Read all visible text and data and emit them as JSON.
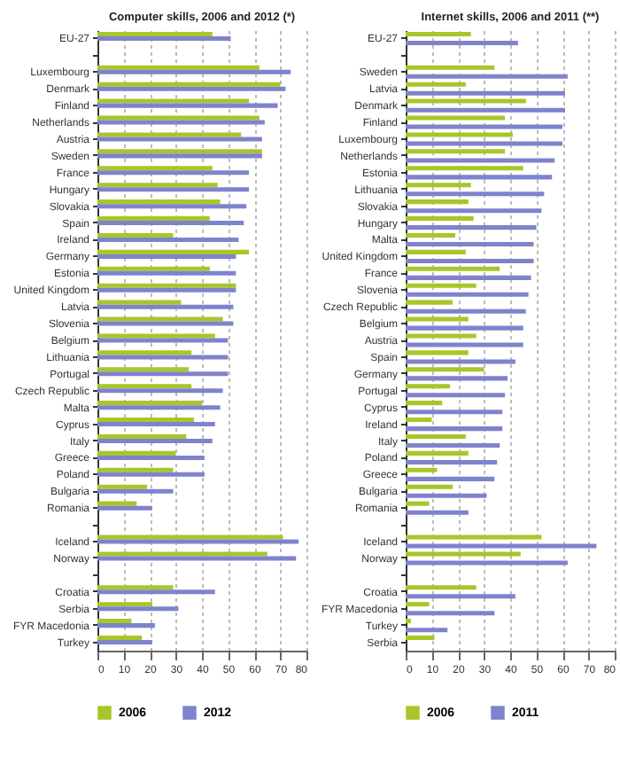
{
  "chart_data": [
    {
      "type": "bar",
      "orientation": "horizontal",
      "title": "Computer skills, 2006 and 2012 (*)",
      "categories": [
        "EU-27",
        null,
        "Luxembourg",
        "Denmark",
        "Finland",
        "Netherlands",
        "Austria",
        "Sweden",
        "France",
        "Hungary",
        "Slovakia",
        "Spain",
        "Ireland",
        "Germany",
        "Estonia",
        "United Kingdom",
        "Latvia",
        "Slovenia",
        "Belgium",
        "Lithuania",
        "Portugal",
        "Czech Republic",
        "Malta",
        "Cyprus",
        "Italy",
        "Greece",
        "Poland",
        "Bulgaria",
        "Romania",
        null,
        "Iceland",
        "Norway",
        null,
        "Croatia",
        "Serbia",
        "FYR Macedonia",
        "Turkey"
      ],
      "series": [
        {
          "name": "2006",
          "color": "#a8c62a",
          "values": [
            44,
            null,
            62,
            70,
            58,
            62,
            55,
            63,
            44,
            46,
            47,
            43,
            29,
            58,
            43,
            53,
            32,
            48,
            45,
            36,
            35,
            36,
            40,
            37,
            34,
            30,
            29,
            19,
            15,
            null,
            71,
            65,
            null,
            29,
            21,
            13,
            17
          ]
        },
        {
          "name": "2012",
          "color": "#7f83cc",
          "values": [
            51,
            null,
            74,
            72,
            69,
            64,
            63,
            63,
            58,
            58,
            57,
            56,
            54,
            53,
            53,
            53,
            52,
            52,
            50,
            50,
            50,
            48,
            47,
            45,
            44,
            41,
            41,
            29,
            21,
            null,
            77,
            76,
            null,
            45,
            31,
            22,
            21
          ]
        }
      ],
      "xlim": [
        0,
        80
      ],
      "xticks": [
        0,
        10,
        20,
        30,
        40,
        50,
        60,
        70,
        80
      ],
      "grid": "x",
      "legend": "bottom"
    },
    {
      "type": "bar",
      "orientation": "horizontal",
      "title": "Internet skills, 2006 and 2011 (**)",
      "categories": [
        "EU-27",
        null,
        "Sweden",
        "Latvia",
        "Denmark",
        "Finland",
        "Luxembourg",
        "Netherlands",
        "Estonia",
        "Lithuania",
        "Slovakia",
        "Hungary",
        "Malta",
        "United Kingdom",
        "France",
        "Slovenia",
        "Czech Republic",
        "Belgium",
        "Austria",
        "Spain",
        "Germany",
        "Portugal",
        "Cyprus",
        "Ireland",
        "Italy",
        "Poland",
        "Greece",
        "Bulgaria",
        "Romania",
        null,
        "Iceland",
        "Norway",
        null,
        "Croatia",
        "FYR Macedonia",
        "Turkey",
        "Serbia"
      ],
      "series": [
        {
          "name": "2006",
          "color": "#a8c62a",
          "values": [
            25,
            null,
            34,
            23,
            46,
            38,
            41,
            38,
            45,
            25,
            24,
            26,
            19,
            23,
            36,
            27,
            18,
            24,
            27,
            24,
            30,
            17,
            14,
            10,
            23,
            24,
            12,
            18,
            9,
            null,
            52,
            44,
            null,
            27,
            9,
            2,
            11
          ]
        },
        {
          "name": "2011",
          "color": "#7f83cc",
          "values": [
            43,
            null,
            62,
            61,
            61,
            60,
            60,
            57,
            56,
            53,
            52,
            50,
            49,
            49,
            48,
            47,
            46,
            45,
            45,
            42,
            39,
            38,
            37,
            37,
            36,
            35,
            34,
            31,
            24,
            null,
            73,
            62,
            null,
            42,
            34,
            16,
            null
          ]
        }
      ],
      "xlim": [
        0,
        80
      ],
      "xticks": [
        0,
        10,
        20,
        30,
        40,
        50,
        60,
        70,
        80
      ],
      "grid": "x",
      "legend": "bottom"
    }
  ]
}
